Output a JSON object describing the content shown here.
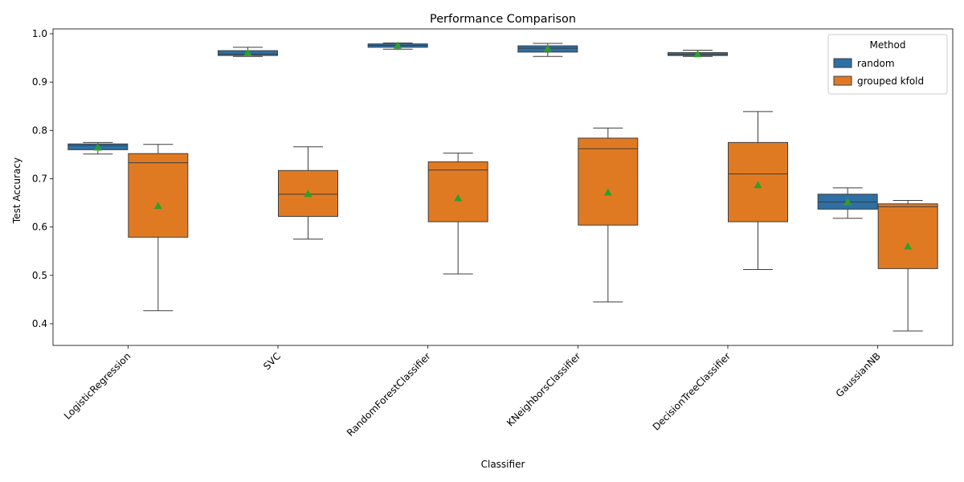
{
  "chart_data": {
    "type": "box",
    "title": "Performance Comparison",
    "xlabel": "Classifier",
    "ylabel": "Test Accuracy",
    "ylim": [
      0.355,
      1.01
    ],
    "yticks": [
      "0.4",
      "0.5",
      "0.6",
      "0.7",
      "0.8",
      "0.9",
      "1.0"
    ],
    "ytick_values": [
      0.4,
      0.5,
      0.6,
      0.7,
      0.8,
      0.9,
      1.0
    ],
    "categories": [
      "LogisticRegression",
      "SVC",
      "RandomForestClassifier",
      "KNeighborsClassifier",
      "DecisionTreeClassifier",
      "GaussianNB"
    ],
    "legend": {
      "title": "Method",
      "placement": "top-right"
    },
    "series": [
      {
        "name": "random",
        "color": "#2f70a4",
        "boxes": [
          {
            "whislo": 0.751,
            "q1": 0.76,
            "med": 0.769,
            "q3": 0.772,
            "whishi": 0.775,
            "mean": 0.765
          },
          {
            "whislo": 0.953,
            "q1": 0.955,
            "med": 0.958,
            "q3": 0.965,
            "whishi": 0.972,
            "mean": 0.961
          },
          {
            "whislo": 0.968,
            "q1": 0.972,
            "med": 0.976,
            "q3": 0.979,
            "whishi": 0.981,
            "mean": 0.976
          },
          {
            "whislo": 0.953,
            "q1": 0.962,
            "med": 0.97,
            "q3": 0.975,
            "whishi": 0.98,
            "mean": 0.969
          },
          {
            "whislo": 0.953,
            "q1": 0.955,
            "med": 0.957,
            "q3": 0.961,
            "whishi": 0.966,
            "mean": 0.958
          },
          {
            "whislo": 0.618,
            "q1": 0.637,
            "med": 0.652,
            "q3": 0.668,
            "whishi": 0.681,
            "mean": 0.652
          }
        ]
      },
      {
        "name": "grouped kfold",
        "color": "#e07a22",
        "boxes": [
          {
            "whislo": 0.427,
            "q1": 0.579,
            "med": 0.733,
            "q3": 0.752,
            "whishi": 0.771,
            "mean": 0.644
          },
          {
            "whislo": 0.575,
            "q1": 0.622,
            "med": 0.668,
            "q3": 0.717,
            "whishi": 0.766,
            "mean": 0.669
          },
          {
            "whislo": 0.503,
            "q1": 0.611,
            "med": 0.718,
            "q3": 0.735,
            "whishi": 0.753,
            "mean": 0.66
          },
          {
            "whislo": 0.445,
            "q1": 0.604,
            "med": 0.762,
            "q3": 0.784,
            "whishi": 0.805,
            "mean": 0.672
          },
          {
            "whislo": 0.512,
            "q1": 0.611,
            "med": 0.71,
            "q3": 0.775,
            "whishi": 0.839,
            "mean": 0.687
          },
          {
            "whislo": 0.385,
            "q1": 0.514,
            "med": 0.642,
            "q3": 0.648,
            "whishi": 0.655,
            "mean": 0.56
          }
        ]
      }
    ],
    "mean_marker_color": "#2ca02c"
  }
}
